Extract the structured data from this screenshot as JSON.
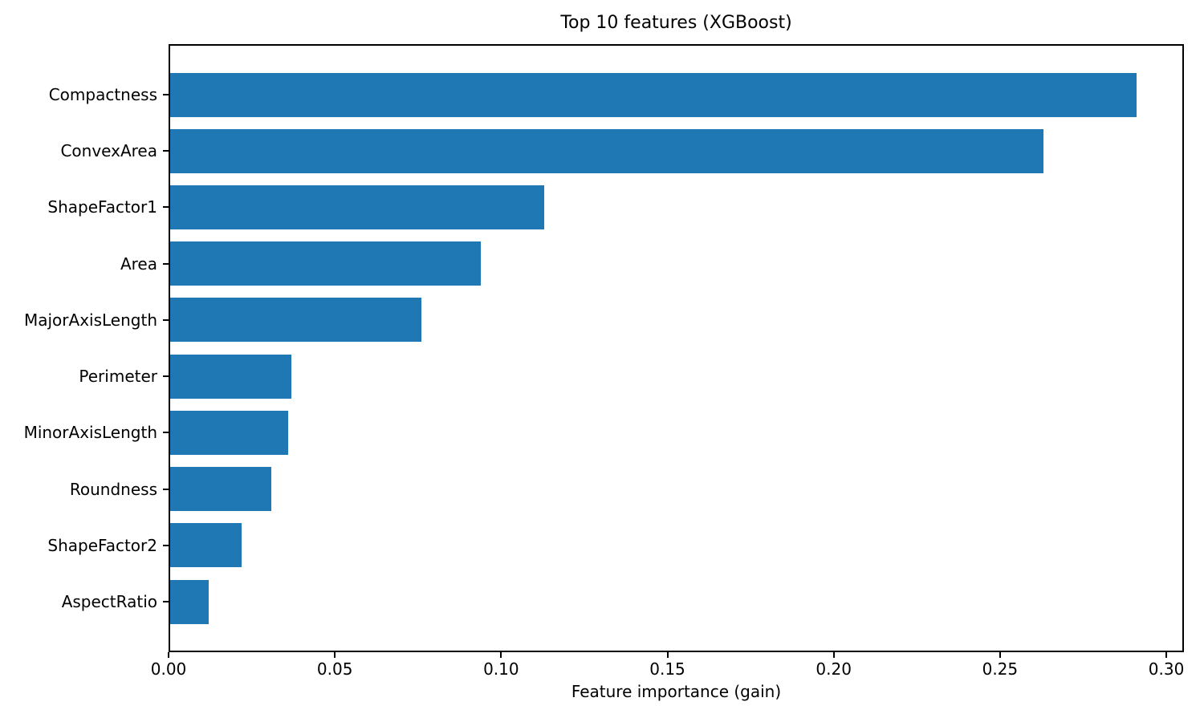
{
  "chart_data": {
    "type": "bar",
    "orientation": "horizontal",
    "title": "Top 10 features (XGBoost)",
    "xlabel": "Feature importance (gain)",
    "ylabel": "",
    "categories": [
      "Compactness",
      "ConvexArea",
      "ShapeFactor1",
      "Area",
      "MajorAxisLength",
      "Perimeter",
      "MinorAxisLength",
      "Roundness",
      "ShapeFactor2",
      "AspectRatio"
    ],
    "values": [
      0.291,
      0.263,
      0.113,
      0.094,
      0.076,
      0.037,
      0.036,
      0.031,
      0.022,
      0.012
    ],
    "xlim": [
      0,
      0.3053
    ],
    "x_ticks": [
      0.0,
      0.05,
      0.1,
      0.15,
      0.2,
      0.25,
      0.3
    ],
    "x_tick_labels": [
      "0.00",
      "0.05",
      "0.10",
      "0.15",
      "0.20",
      "0.25",
      "0.30"
    ],
    "bar_color": "#1f77b4",
    "grid": false,
    "legend": null
  }
}
